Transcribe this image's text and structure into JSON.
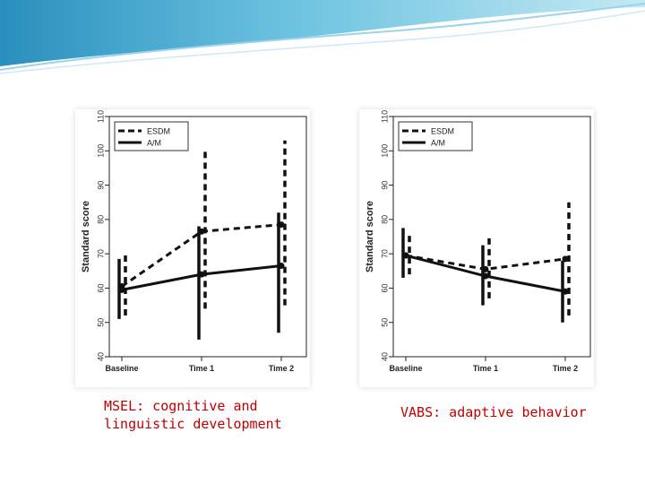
{
  "theme": {
    "banner_dark": "#2b8fbd",
    "banner_light": "#bfe6f2",
    "caption_color": "#c00000",
    "series_color": "#111111"
  },
  "captions": {
    "left": "MSEL: cognitive and linguistic development",
    "right": "VABS: adaptive behavior"
  },
  "chart_data": [
    {
      "type": "line",
      "title": "",
      "xlabel": "",
      "ylabel": "Standard score",
      "categories": [
        "Baseline",
        "Time 1",
        "Time 2"
      ],
      "ylim": [
        40,
        110
      ],
      "yticks": [
        40,
        50,
        60,
        70,
        80,
        90,
        100,
        110
      ],
      "legend": {
        "position": "top-left",
        "entries": [
          "ESDM",
          "A/M"
        ]
      },
      "series": [
        {
          "name": "ESDM",
          "style": "dashed",
          "values": [
            60.5,
            76.5,
            78.5
          ],
          "err_low": [
            52,
            54,
            55
          ],
          "err_high": [
            70.5,
            100,
            103
          ]
        },
        {
          "name": "A/M",
          "style": "solid",
          "values": [
            59.5,
            64,
            66.5
          ],
          "err_low": [
            51,
            45,
            47
          ],
          "err_high": [
            68.5,
            78,
            82
          ]
        }
      ]
    },
    {
      "type": "line",
      "title": "",
      "xlabel": "",
      "ylabel": "Standard score",
      "categories": [
        "Baseline",
        "Time 1",
        "Time 2"
      ],
      "ylim": [
        40,
        110
      ],
      "yticks": [
        40,
        50,
        60,
        70,
        80,
        90,
        100,
        110
      ],
      "legend": {
        "position": "top-left",
        "entries": [
          "ESDM",
          "A/M"
        ]
      },
      "series": [
        {
          "name": "ESDM",
          "style": "dashed",
          "values": [
            69.5,
            65.5,
            68.5
          ],
          "err_low": [
            64,
            57,
            52
          ],
          "err_high": [
            75.5,
            75.5,
            85
          ]
        },
        {
          "name": "A/M",
          "style": "solid",
          "values": [
            69.5,
            63.5,
            59
          ],
          "err_low": [
            63,
            55,
            50
          ],
          "err_high": [
            77.5,
            72.5,
            68
          ]
        }
      ]
    }
  ]
}
